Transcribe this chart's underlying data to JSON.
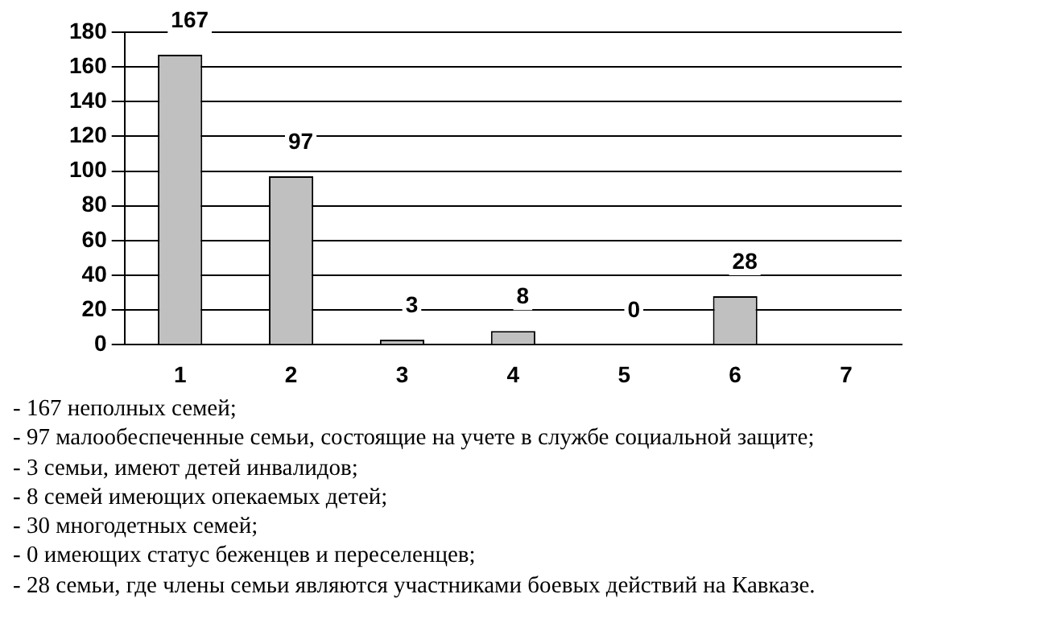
{
  "chart_data": {
    "type": "bar",
    "categories": [
      "1",
      "2",
      "3",
      "4",
      "5",
      "6",
      "7"
    ],
    "values": [
      167,
      97,
      3,
      8,
      0,
      28,
      null
    ],
    "color": "#c0c0c0",
    "ylim": [
      0,
      180
    ],
    "yticks": [
      0,
      20,
      40,
      60,
      80,
      100,
      120,
      140,
      160,
      180
    ],
    "grid": "y",
    "data_labels": true,
    "annotations": [
      "- 167 неполных семей;",
      "- 97 малообеспеченные семьи, состоящие на учете в службе социальной защите;",
      "- 3 семьи, имеют детей инвалидов;",
      "- 8 семей имеющих опекаемых детей;",
      "- 30 многодетных семей;",
      "- 0 имеющих статус беженцев и переселенцев;",
      "- 28 семьи, где члены семьи являются участниками боевых действий на Кавказе."
    ]
  }
}
